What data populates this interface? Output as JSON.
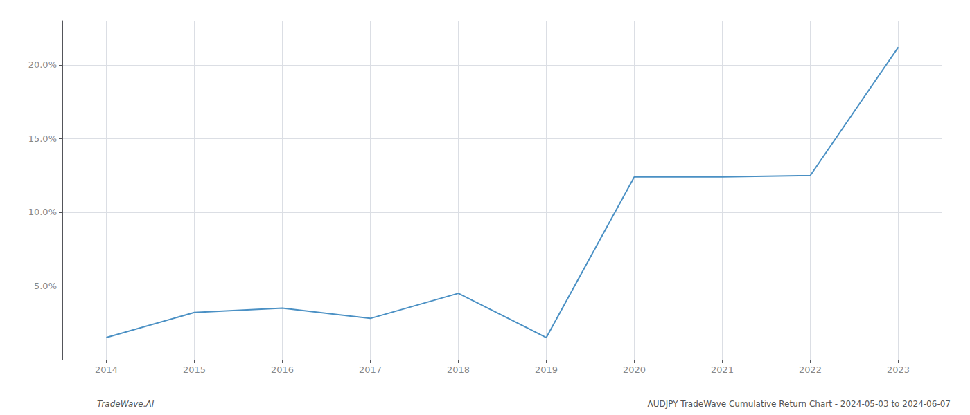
{
  "chart_data": {
    "type": "line",
    "x": [
      2014,
      2015,
      2016,
      2017,
      2018,
      2019,
      2020,
      2021,
      2022,
      2023
    ],
    "values": [
      1.5,
      3.2,
      3.5,
      2.8,
      4.5,
      1.5,
      12.4,
      12.4,
      12.5,
      21.2
    ],
    "color": "#4a90c4",
    "xlim": [
      2013.5,
      2023.5
    ],
    "xticks": [
      2014,
      2015,
      2016,
      2017,
      2018,
      2019,
      2020,
      2021,
      2022,
      2023
    ],
    "ylim": [
      0,
      23
    ],
    "yticks": [
      {
        "value": 5.0,
        "label": "5.0%"
      },
      {
        "value": 10.0,
        "label": "10.0%"
      },
      {
        "value": 15.0,
        "label": "15.0%"
      },
      {
        "value": 20.0,
        "label": "20.0%"
      }
    ],
    "grid": true,
    "annotations": [
      "TradeWave.AI",
      "AUDJPY TradeWave Cumulative Return Chart - 2024-05-03 to 2024-06-07"
    ]
  }
}
